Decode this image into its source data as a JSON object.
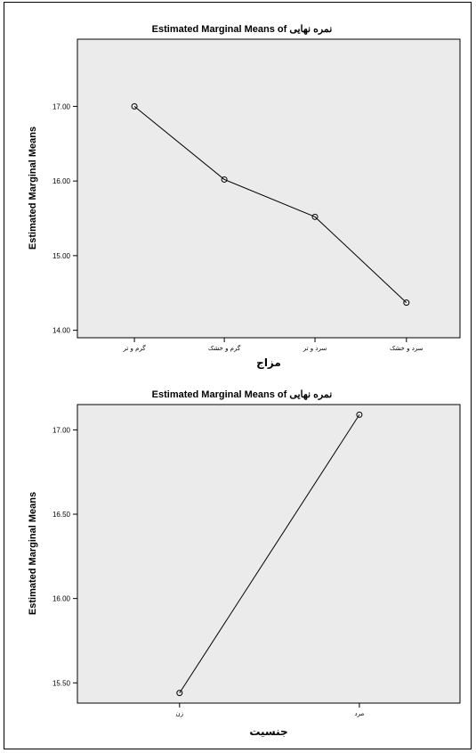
{
  "chart_data": [
    {
      "type": "line",
      "title": "Estimated Marginal Means of نمره نهایی",
      "xlabel": "مزاج",
      "ylabel": "Estimated Marginal Means",
      "categories": [
        "گرم و تر",
        "گرم و خشک",
        "سرد و تر",
        "سرد و خشک"
      ],
      "values": [
        17.0,
        16.02,
        15.52,
        14.37
      ],
      "ylim": [
        13.9,
        17.9
      ],
      "yticks": [
        "14.00",
        "15.00",
        "16.00",
        "17.00"
      ],
      "ytick_values": [
        14.0,
        15.0,
        16.0,
        17.0
      ],
      "grid": false,
      "plot_bg": "#ebebeb",
      "line_color": "#000000"
    },
    {
      "type": "line",
      "title": "Estimated Marginal Means of نمره نهایی",
      "xlabel": "جنسیت",
      "ylabel": "Estimated Marginal Means",
      "categories": [
        "زن",
        "مرد"
      ],
      "values": [
        15.44,
        17.09
      ],
      "ylim": [
        15.38,
        17.15
      ],
      "yticks": [
        "15.50",
        "16.00",
        "16.50",
        "17.00"
      ],
      "ytick_values": [
        15.5,
        16.0,
        16.5,
        17.0
      ],
      "grid": false,
      "plot_bg": "#ebebeb",
      "line_color": "#000000"
    }
  ]
}
